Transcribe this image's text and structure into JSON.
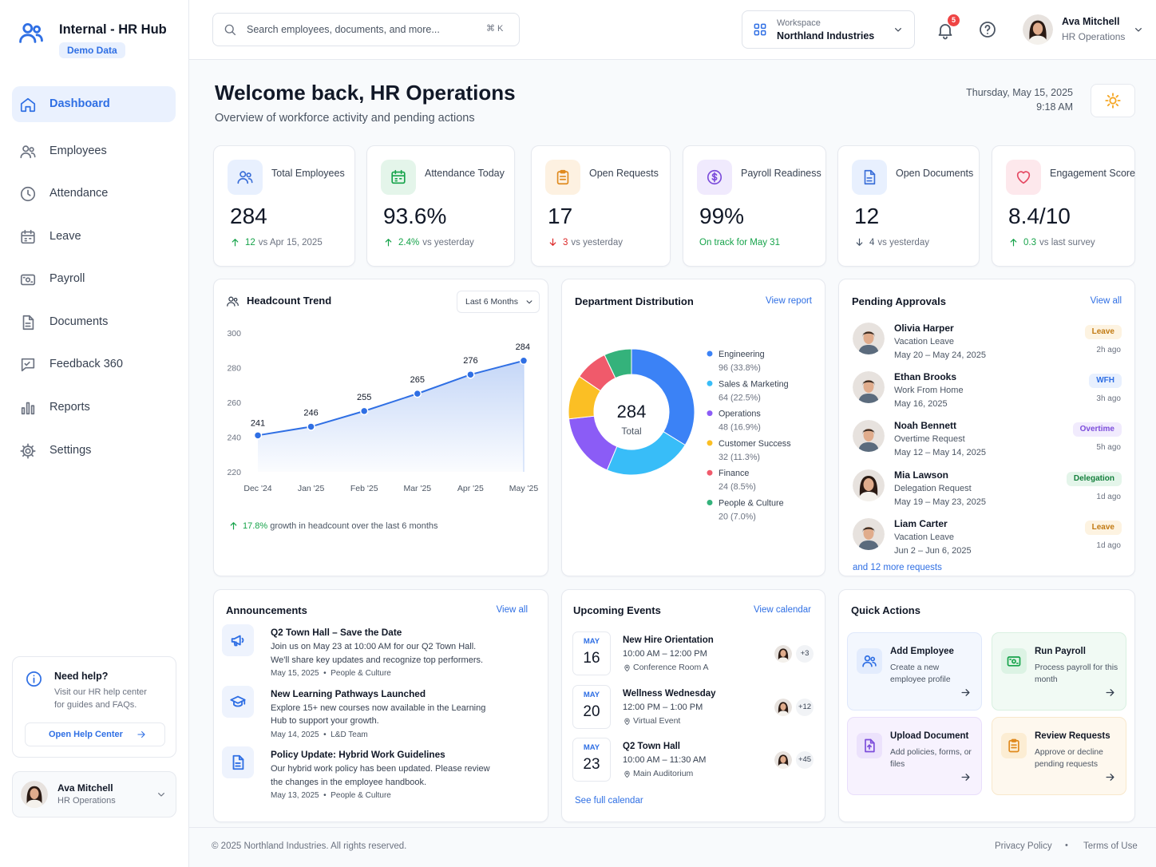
{
  "sidebar": {
    "brand": "Internal - HR Hub",
    "badge": "Demo Data",
    "nav": [
      "Dashboard",
      "Employees",
      "Attendance",
      "Leave",
      "Payroll",
      "Documents",
      "Feedback 360",
      "Reports",
      "Settings"
    ],
    "help": {
      "title": "Need help?",
      "text": "Visit our HR help center for guides and FAQs.",
      "button": "Open Help Center"
    },
    "user": {
      "name": "Ava Mitchell",
      "role": "HR Operations"
    }
  },
  "topbar": {
    "search": "Search employees, documents, and more...",
    "shortcut": "⌘ K",
    "workspace_label": "Workspace",
    "workspace": "Northland Industries",
    "notifications": "5",
    "user": {
      "name": "Ava Mitchell",
      "role": "HR Operations"
    }
  },
  "header": {
    "title": "Welcome back, HR Operations",
    "subtitle": "Overview of workforce activity and pending actions",
    "date": "Thursday, May 15, 2025",
    "time": "9:18 AM"
  },
  "kpis": [
    {
      "label": "Total Employees",
      "value": "284",
      "delta": "12",
      "note": "vs Apr 15, 2025",
      "trend": "up",
      "color": "#16a34a"
    },
    {
      "label": "Attendance Today",
      "value": "93.6%",
      "delta": "2.4%",
      "note": "vs yesterday",
      "trend": "up",
      "color": "#16a34a"
    },
    {
      "label": "Open Requests",
      "value": "17",
      "delta": "3",
      "note": "vs yesterday",
      "trend": "down",
      "color": "#dc2626"
    },
    {
      "label": "Payroll Readiness",
      "value": "99%",
      "note": "On track for May 31",
      "color": "#16a34a"
    },
    {
      "label": "Open Documents",
      "value": "12",
      "delta": "4",
      "note": "vs yesterday",
      "trend": "down",
      "color": "#475569"
    },
    {
      "label": "Engagement Score",
      "value": "8.4/10",
      "delta": "0.3",
      "note": "vs last survey",
      "trend": "up",
      "color": "#16a34a"
    }
  ],
  "chart_data": [
    {
      "type": "line",
      "title": "Headcount Trend",
      "range": "Last 6 Months",
      "categories": [
        "Dec '24",
        "Jan '25",
        "Feb '25",
        "Mar '25",
        "Apr '25",
        "May '25"
      ],
      "values": [
        241,
        246,
        255,
        265,
        276,
        284
      ],
      "color": "#2f6fe4",
      "ylim": [
        220,
        300
      ],
      "yticks": [
        220,
        240,
        260,
        280,
        300
      ],
      "grid": false,
      "footnote_value": "17.8%",
      "footnote": "growth in headcount over the last 6 months"
    },
    {
      "type": "donut",
      "title": "Department Distribution",
      "link": "View report",
      "center_value": "284",
      "center_label": "Total",
      "categories": [
        "Engineering",
        "Sales & Marketing",
        "Operations",
        "Customer Success",
        "Finance",
        "People & Culture"
      ],
      "values": [
        96,
        64,
        48,
        32,
        24,
        20
      ],
      "value_labels": [
        "96 (33.8%)",
        "64 (22.5%)",
        "48 (16.9%)",
        "32 (11.3%)",
        "24 (8.5%)",
        "20 (7.0%)"
      ],
      "colors": [
        "#3b82f6",
        "#38bdf8",
        "#8b5cf6",
        "#fbbf24",
        "#f05a6b",
        "#34b27b"
      ]
    }
  ],
  "approvals": {
    "title": "Pending Approvals",
    "link": "View all",
    "items": [
      {
        "name": "Olivia Harper",
        "type": "Vacation Leave",
        "dates": "May 20 – May 24, 2025",
        "tag": "Leave",
        "time": "2h ago"
      },
      {
        "name": "Ethan Brooks",
        "type": "Work From Home",
        "dates": "May 16, 2025",
        "tag": "WFH",
        "time": "3h ago"
      },
      {
        "name": "Noah Bennett",
        "type": "Overtime Request",
        "dates": "May 12 – May 14, 2025",
        "tag": "Overtime",
        "time": "5h ago"
      },
      {
        "name": "Mia Lawson",
        "type": "Delegation Request",
        "dates": "May 19 – May 23, 2025",
        "tag": "Delegation",
        "time": "1d ago"
      },
      {
        "name": "Liam Carter",
        "type": "Vacation Leave",
        "dates": "Jun 2 – Jun 6, 2025",
        "tag": "Leave",
        "time": "1d ago"
      }
    ],
    "more": "and 12 more requests"
  },
  "announcements": {
    "title": "Announcements",
    "link": "View all",
    "items": [
      {
        "title": "Q2 Town Hall – Save the Date",
        "text": "Join us on May 23 at 10:00 AM for our Q2 Town Hall. We'll share key updates and recognize top performers.",
        "date": "May 15, 2025",
        "category": "People & Culture"
      },
      {
        "title": "New Learning Pathways Launched",
        "text": "Explore 15+ new courses now available in the Learning Hub to support your growth.",
        "date": "May 14, 2025",
        "category": "L&D Team"
      },
      {
        "title": "Policy Update: Hybrid Work Guidelines",
        "text": "Our hybrid work policy has been updated. Please review the changes in the employee handbook.",
        "date": "May 13, 2025",
        "category": "People & Culture"
      }
    ]
  },
  "events": {
    "title": "Upcoming Events",
    "link": "View calendar",
    "items": [
      {
        "month": "MAY",
        "day": "16",
        "title": "New Hire Orientation",
        "time": "10:00 AM – 12:00 PM",
        "place": "Conference Room A",
        "attendees": "+3"
      },
      {
        "month": "MAY",
        "day": "20",
        "title": "Wellness Wednesday",
        "time": "12:00 PM – 1:00 PM",
        "place": "Virtual Event",
        "attendees": "+12"
      },
      {
        "month": "MAY",
        "day": "23",
        "title": "Q2 Town Hall",
        "time": "10:00 AM – 11:30 AM",
        "place": "Main Auditorium",
        "attendees": "+45"
      }
    ],
    "more": "See full calendar"
  },
  "quick_actions": {
    "title": "Quick Actions",
    "items": [
      {
        "title": "Add Employee",
        "text": "Create a new employee profile"
      },
      {
        "title": "Run Payroll",
        "text": "Process payroll for this month"
      },
      {
        "title": "Upload Document",
        "text": "Add policies, forms, or files"
      },
      {
        "title": "Review Requests",
        "text": "Approve or decline pending requests"
      }
    ]
  },
  "footer": {
    "copyright": "© 2025 Northland Industries. All rights reserved.",
    "links": [
      "Privacy Policy",
      "Terms of Use"
    ]
  }
}
